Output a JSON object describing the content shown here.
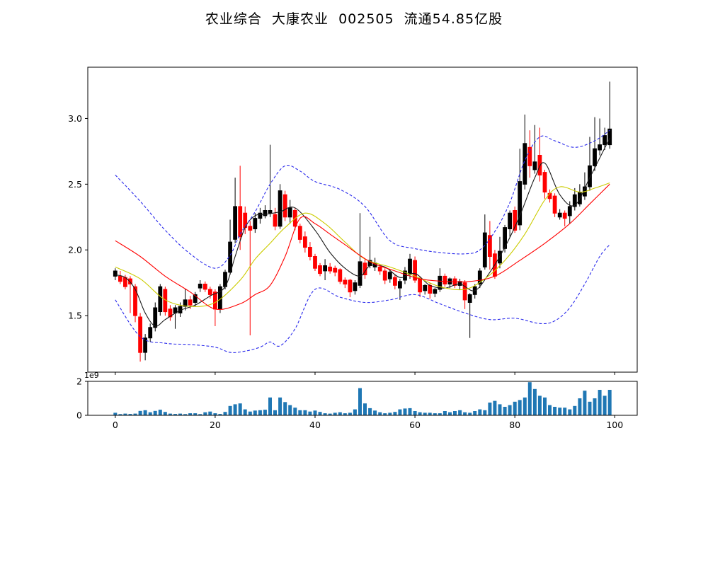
{
  "title": "农业综合  大康农业  002505  流通54.85亿股",
  "colors": {
    "background": "#ffffff",
    "up": "#000000",
    "down": "#ff0000",
    "volume": "#1f77b4",
    "band": "#2b2bec",
    "ma_fast": "#1a1a1a",
    "ma_mid": "#cccc00",
    "ma_slow": "#ff0000",
    "axis": "#000000"
  },
  "chart_data": {
    "type": "candlestick",
    "title": "农业综合  大康农业  002505  流通54.85亿股",
    "xlabel": "",
    "ylabel": "",
    "grid": false,
    "legend": "none",
    "x_range": [
      -5.5,
      104.5
    ],
    "price_range": [
      1.07,
      3.39
    ],
    "price_ticks": [
      "1.5",
      "2.0",
      "2.5",
      "3.0"
    ],
    "price_tick_values": [
      1.5,
      2.0,
      2.5,
      3.0
    ],
    "x_ticks": [
      0,
      20,
      40,
      60,
      80,
      100
    ],
    "x_tick_labels": [
      "0",
      "20",
      "40",
      "60",
      "80",
      "100"
    ],
    "volume_range": [
      0,
      2
    ],
    "volume_ticks": [
      "0",
      "2"
    ],
    "volume_tick_values": [
      0,
      2
    ],
    "volume_offset_label": "1e9",
    "candles": {
      "columns": [
        "open",
        "high",
        "low",
        "close",
        "volume_e9"
      ],
      "rows": [
        [
          1.8,
          1.86,
          1.77,
          1.84,
          0.15
        ],
        [
          1.8,
          1.84,
          1.74,
          1.76,
          0.07
        ],
        [
          1.79,
          1.81,
          1.7,
          1.72,
          0.1
        ],
        [
          1.78,
          1.8,
          1.52,
          1.74,
          0.08
        ],
        [
          1.72,
          1.74,
          1.45,
          1.5,
          0.1
        ],
        [
          1.49,
          1.52,
          1.15,
          1.22,
          0.26
        ],
        [
          1.22,
          1.36,
          1.16,
          1.33,
          0.3
        ],
        [
          1.33,
          1.44,
          1.3,
          1.41,
          0.18
        ],
        [
          1.41,
          1.6,
          1.38,
          1.56,
          0.26
        ],
        [
          1.53,
          1.74,
          1.5,
          1.72,
          0.33
        ],
        [
          1.7,
          1.72,
          1.5,
          1.53,
          0.2
        ],
        [
          1.55,
          1.58,
          1.46,
          1.49,
          0.1
        ],
        [
          1.52,
          1.58,
          1.4,
          1.56,
          0.08
        ],
        [
          1.52,
          1.6,
          1.49,
          1.57,
          0.1
        ],
        [
          1.57,
          1.7,
          1.54,
          1.62,
          0.07
        ],
        [
          1.62,
          1.65,
          1.55,
          1.58,
          0.12
        ],
        [
          1.6,
          1.68,
          1.57,
          1.66,
          0.12
        ],
        [
          1.71,
          1.77,
          1.68,
          1.74,
          0.07
        ],
        [
          1.74,
          1.76,
          1.68,
          1.7,
          0.18
        ],
        [
          1.7,
          1.72,
          1.63,
          1.66,
          0.22
        ],
        [
          1.68,
          1.7,
          1.42,
          1.55,
          0.12
        ],
        [
          1.55,
          1.74,
          1.52,
          1.72,
          0.08
        ],
        [
          1.72,
          1.85,
          1.7,
          1.83,
          0.2
        ],
        [
          1.83,
          2.23,
          1.81,
          2.06,
          0.55
        ],
        [
          2.08,
          2.55,
          2.05,
          2.33,
          0.65
        ],
        [
          2.33,
          2.64,
          2.0,
          2.1,
          0.7
        ],
        [
          2.28,
          2.33,
          2.12,
          2.17,
          0.35
        ],
        [
          2.18,
          2.22,
          1.35,
          2.15,
          0.22
        ],
        [
          2.16,
          2.28,
          2.13,
          2.24,
          0.28
        ],
        [
          2.24,
          2.32,
          2.2,
          2.28,
          0.3
        ],
        [
          2.26,
          2.34,
          2.24,
          2.3,
          0.33
        ],
        [
          2.28,
          2.8,
          2.25,
          2.3,
          1.05
        ],
        [
          2.27,
          2.32,
          2.15,
          2.18,
          0.3
        ],
        [
          2.18,
          2.5,
          2.16,
          2.45,
          1.05
        ],
        [
          2.42,
          2.45,
          2.22,
          2.25,
          0.78
        ],
        [
          2.25,
          2.38,
          2.2,
          2.32,
          0.6
        ],
        [
          2.3,
          2.32,
          2.15,
          2.18,
          0.45
        ],
        [
          2.18,
          2.2,
          2.05,
          2.08,
          0.3
        ],
        [
          2.1,
          2.14,
          1.98,
          2.02,
          0.3
        ],
        [
          2.02,
          2.06,
          1.92,
          1.95,
          0.22
        ],
        [
          1.95,
          1.97,
          1.84,
          1.86,
          0.28
        ],
        [
          1.88,
          1.9,
          1.8,
          1.82,
          0.2
        ],
        [
          1.84,
          1.93,
          1.77,
          1.88,
          0.12
        ],
        [
          1.87,
          1.9,
          1.82,
          1.84,
          0.1
        ],
        [
          1.86,
          1.88,
          1.8,
          1.83,
          0.15
        ],
        [
          1.85,
          1.86,
          1.74,
          1.76,
          0.18
        ],
        [
          1.77,
          1.79,
          1.71,
          1.74,
          0.12
        ],
        [
          1.77,
          1.78,
          1.64,
          1.68,
          0.15
        ],
        [
          1.69,
          1.77,
          1.66,
          1.75,
          0.35
        ],
        [
          1.73,
          2.28,
          1.71,
          1.91,
          1.6
        ],
        [
          1.9,
          1.93,
          1.78,
          1.81,
          0.7
        ],
        [
          1.88,
          2.1,
          1.86,
          1.92,
          0.42
        ],
        [
          1.87,
          1.94,
          1.84,
          1.9,
          0.28
        ],
        [
          1.87,
          1.89,
          1.81,
          1.84,
          0.18
        ],
        [
          1.84,
          1.86,
          1.74,
          1.77,
          0.12
        ],
        [
          1.78,
          1.85,
          1.75,
          1.83,
          0.15
        ],
        [
          1.79,
          1.81,
          1.7,
          1.73,
          0.2
        ],
        [
          1.71,
          1.78,
          1.62,
          1.76,
          0.35
        ],
        [
          1.77,
          1.87,
          1.74,
          1.84,
          0.4
        ],
        [
          1.82,
          1.97,
          1.78,
          1.93,
          0.42
        ],
        [
          1.92,
          1.95,
          1.75,
          1.77,
          0.25
        ],
        [
          1.78,
          1.8,
          1.64,
          1.68,
          0.18
        ],
        [
          1.69,
          1.74,
          1.66,
          1.73,
          0.15
        ],
        [
          1.73,
          1.75,
          1.63,
          1.67,
          0.15
        ],
        [
          1.67,
          1.71,
          1.64,
          1.7,
          0.12
        ],
        [
          1.7,
          1.86,
          1.68,
          1.8,
          0.12
        ],
        [
          1.8,
          1.82,
          1.72,
          1.74,
          0.25
        ],
        [
          1.74,
          1.79,
          1.71,
          1.78,
          0.18
        ],
        [
          1.78,
          1.8,
          1.71,
          1.73,
          0.25
        ],
        [
          1.73,
          1.78,
          1.7,
          1.76,
          0.3
        ],
        [
          1.75,
          1.77,
          1.55,
          1.62,
          0.18
        ],
        [
          1.6,
          1.67,
          1.33,
          1.66,
          0.15
        ],
        [
          1.66,
          1.74,
          1.63,
          1.72,
          0.25
        ],
        [
          1.74,
          1.86,
          1.71,
          1.84,
          0.35
        ],
        [
          1.87,
          2.27,
          1.85,
          2.13,
          0.3
        ],
        [
          2.11,
          2.22,
          1.85,
          1.95,
          0.75
        ],
        [
          1.97,
          2.0,
          1.78,
          1.8,
          0.85
        ],
        [
          1.9,
          2.1,
          1.86,
          1.99,
          0.65
        ],
        [
          2.01,
          2.19,
          1.98,
          2.17,
          0.5
        ],
        [
          2.16,
          2.3,
          2.1,
          2.28,
          0.6
        ],
        [
          2.3,
          2.33,
          2.13,
          2.15,
          0.8
        ],
        [
          2.19,
          2.77,
          2.15,
          2.52,
          0.9
        ],
        [
          2.5,
          3.03,
          2.46,
          2.81,
          1.05
        ],
        [
          2.78,
          2.91,
          2.55,
          2.64,
          1.95
        ],
        [
          2.61,
          2.95,
          2.58,
          2.67,
          1.55
        ],
        [
          2.72,
          2.93,
          2.52,
          2.57,
          1.15
        ],
        [
          2.59,
          2.61,
          2.39,
          2.44,
          1.05
        ],
        [
          2.43,
          2.46,
          2.36,
          2.39,
          0.6
        ],
        [
          2.41,
          2.43,
          2.25,
          2.28,
          0.5
        ],
        [
          2.25,
          2.31,
          2.23,
          2.28,
          0.45
        ],
        [
          2.28,
          2.3,
          2.18,
          2.24,
          0.45
        ],
        [
          2.26,
          2.37,
          2.2,
          2.33,
          0.35
        ],
        [
          2.33,
          2.47,
          2.3,
          2.42,
          0.55
        ],
        [
          2.35,
          2.5,
          2.33,
          2.44,
          1.0
        ],
        [
          2.41,
          2.59,
          2.38,
          2.48,
          1.45
        ],
        [
          2.48,
          2.86,
          2.45,
          2.64,
          0.8
        ],
        [
          2.64,
          3.01,
          2.6,
          2.77,
          1.0
        ],
        [
          2.76,
          3.0,
          2.72,
          2.8,
          1.5
        ],
        [
          2.8,
          2.93,
          2.76,
          2.87,
          1.15
        ],
        [
          2.8,
          3.28,
          2.77,
          2.92,
          1.5
        ]
      ]
    },
    "overlays": [
      {
        "name": "ma-fast",
        "style": "solid",
        "color_key": "ma_fast",
        "x": [
          0,
          2,
          4,
          6,
          8,
          10,
          13,
          16,
          19,
          22,
          24,
          26,
          28,
          30,
          33,
          36,
          40,
          43,
          46,
          49,
          51,
          54,
          57,
          60,
          63,
          66,
          69,
          72,
          75,
          78,
          81,
          84,
          86,
          89,
          92,
          95,
          97,
          99
        ],
        "y": [
          1.81,
          1.79,
          1.7,
          1.52,
          1.42,
          1.47,
          1.54,
          1.58,
          1.65,
          1.72,
          1.95,
          2.17,
          2.26,
          2.27,
          2.29,
          2.32,
          2.15,
          1.98,
          1.86,
          1.8,
          1.88,
          1.87,
          1.79,
          1.82,
          1.73,
          1.71,
          1.74,
          1.69,
          1.83,
          2.02,
          2.26,
          2.55,
          2.66,
          2.42,
          2.34,
          2.55,
          2.7,
          2.85
        ]
      },
      {
        "name": "ma-mid",
        "style": "solid",
        "color_key": "ma_mid",
        "x": [
          0,
          5,
          10,
          15,
          20,
          25,
          28,
          31,
          34,
          38,
          42,
          46,
          50,
          55,
          60,
          65,
          70,
          74,
          78,
          82,
          86,
          89,
          93,
          96,
          99
        ],
        "y": [
          1.87,
          1.78,
          1.62,
          1.57,
          1.6,
          1.77,
          1.93,
          2.05,
          2.17,
          2.28,
          2.2,
          2.06,
          1.93,
          1.87,
          1.8,
          1.72,
          1.7,
          1.78,
          1.92,
          2.12,
          2.38,
          2.48,
          2.44,
          2.47,
          2.51
        ]
      },
      {
        "name": "ma-slow",
        "style": "solid",
        "color_key": "ma_slow",
        "x": [
          0,
          5,
          10,
          15,
          20,
          25,
          28,
          31,
          34,
          37,
          40,
          43,
          46,
          51,
          56,
          61,
          66,
          71,
          76,
          81,
          86,
          91,
          95,
          99
        ],
        "y": [
          2.07,
          1.95,
          1.8,
          1.68,
          1.55,
          1.59,
          1.66,
          1.73,
          1.95,
          2.24,
          2.2,
          2.12,
          2.04,
          1.91,
          1.84,
          1.78,
          1.76,
          1.76,
          1.8,
          1.92,
          2.05,
          2.2,
          2.35,
          2.5
        ]
      },
      {
        "name": "bollinger-upper",
        "style": "dashed",
        "color_key": "band",
        "x": [
          0,
          5,
          10,
          15,
          20,
          23,
          25,
          28,
          31,
          34,
          37,
          40,
          45,
          50,
          55,
          60,
          65,
          70,
          73,
          76,
          79,
          82,
          85,
          88,
          92,
          96,
          99
        ],
        "y": [
          2.57,
          2.37,
          2.15,
          1.97,
          1.86,
          1.96,
          2.12,
          2.29,
          2.5,
          2.64,
          2.6,
          2.52,
          2.46,
          2.33,
          2.07,
          2.01,
          1.98,
          1.97,
          2.0,
          2.14,
          2.36,
          2.68,
          2.86,
          2.83,
          2.78,
          2.83,
          2.91
        ]
      },
      {
        "name": "bollinger-lower",
        "style": "dashed",
        "color_key": "band",
        "x": [
          0,
          5,
          10,
          15,
          20,
          23,
          26,
          29,
          31,
          33,
          36,
          40,
          45,
          50,
          55,
          60,
          65,
          70,
          75,
          80,
          85,
          88,
          91,
          94,
          97,
          99
        ],
        "y": [
          1.62,
          1.34,
          1.29,
          1.28,
          1.26,
          1.22,
          1.23,
          1.26,
          1.3,
          1.27,
          1.4,
          1.7,
          1.64,
          1.6,
          1.62,
          1.66,
          1.59,
          1.52,
          1.47,
          1.48,
          1.44,
          1.46,
          1.56,
          1.74,
          1.95,
          2.04
        ]
      }
    ]
  }
}
